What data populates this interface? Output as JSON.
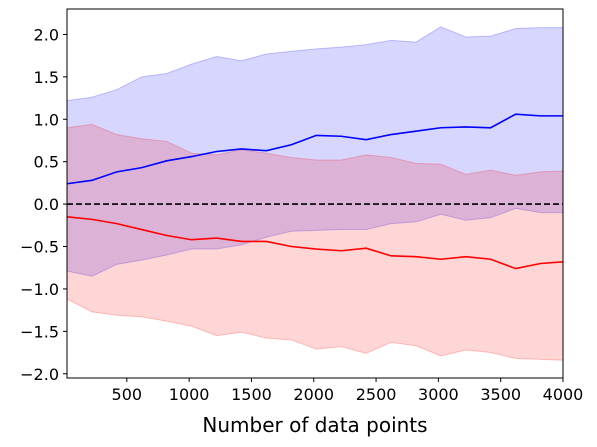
{
  "chart_data": {
    "type": "line",
    "title": "",
    "xlabel": "Number of data points",
    "ylabel": "",
    "xlim": [
      20,
      4000
    ],
    "ylim": [
      -2.05,
      2.3
    ],
    "x_ticks": [
      500,
      1000,
      1500,
      2000,
      2500,
      3000,
      3500,
      4000
    ],
    "y_ticks": [
      -2.0,
      -1.5,
      -1.0,
      -0.5,
      0.0,
      0.5,
      1.0,
      1.5,
      2.0
    ],
    "x_tick_labels": [
      "500",
      "1000",
      "1500",
      "2000",
      "2500",
      "3000",
      "3500",
      "4000"
    ],
    "y_tick_labels": [
      "−2.0",
      "−1.5",
      "−1.0",
      "−0.5",
      "0.0",
      "0.5",
      "1.0",
      "1.5",
      "2.0"
    ],
    "grid": false,
    "legend": "none",
    "x": [
      20,
      220,
      420,
      620,
      820,
      1020,
      1220,
      1420,
      1620,
      1820,
      2020,
      2220,
      2420,
      2620,
      2820,
      3020,
      3220,
      3420,
      3620,
      3820,
      4000
    ],
    "reference_line": {
      "y": 0.0,
      "color": "#000000",
      "style": "dashed"
    },
    "series": [
      {
        "color": "#0000ff",
        "fill_color": "#0000ff",
        "values": [
          0.24,
          0.28,
          0.38,
          0.43,
          0.51,
          0.56,
          0.62,
          0.65,
          0.63,
          0.7,
          0.81,
          0.8,
          0.76,
          0.82,
          0.86,
          0.9,
          0.91,
          0.9,
          1.06,
          1.04,
          1.04
        ],
        "upper": [
          1.22,
          1.26,
          1.35,
          1.5,
          1.54,
          1.65,
          1.74,
          1.69,
          1.77,
          1.8,
          1.83,
          1.85,
          1.88,
          1.93,
          1.91,
          2.09,
          1.97,
          1.98,
          2.07,
          2.08,
          2.08
        ],
        "lower": [
          -0.79,
          -0.85,
          -0.71,
          -0.66,
          -0.6,
          -0.53,
          -0.53,
          -0.48,
          -0.39,
          -0.32,
          -0.31,
          -0.3,
          -0.3,
          -0.23,
          -0.21,
          -0.12,
          -0.19,
          -0.16,
          -0.05,
          -0.1,
          -0.1
        ]
      },
      {
        "color": "#ff0000",
        "fill_color": "#ff0000",
        "values": [
          -0.15,
          -0.18,
          -0.23,
          -0.3,
          -0.37,
          -0.42,
          -0.4,
          -0.44,
          -0.44,
          -0.5,
          -0.53,
          -0.55,
          -0.52,
          -0.61,
          -0.62,
          -0.65,
          -0.62,
          -0.65,
          -0.76,
          -0.7,
          -0.68
        ],
        "upper": [
          0.9,
          0.94,
          0.82,
          0.77,
          0.74,
          0.6,
          0.58,
          0.64,
          0.6,
          0.55,
          0.52,
          0.52,
          0.58,
          0.55,
          0.48,
          0.47,
          0.35,
          0.4,
          0.34,
          0.38,
          0.39
        ],
        "lower": [
          -1.12,
          -1.27,
          -1.31,
          -1.33,
          -1.38,
          -1.44,
          -1.55,
          -1.51,
          -1.58,
          -1.6,
          -1.71,
          -1.68,
          -1.76,
          -1.63,
          -1.67,
          -1.79,
          -1.72,
          -1.75,
          -1.82,
          -1.83,
          -1.84
        ]
      }
    ]
  }
}
